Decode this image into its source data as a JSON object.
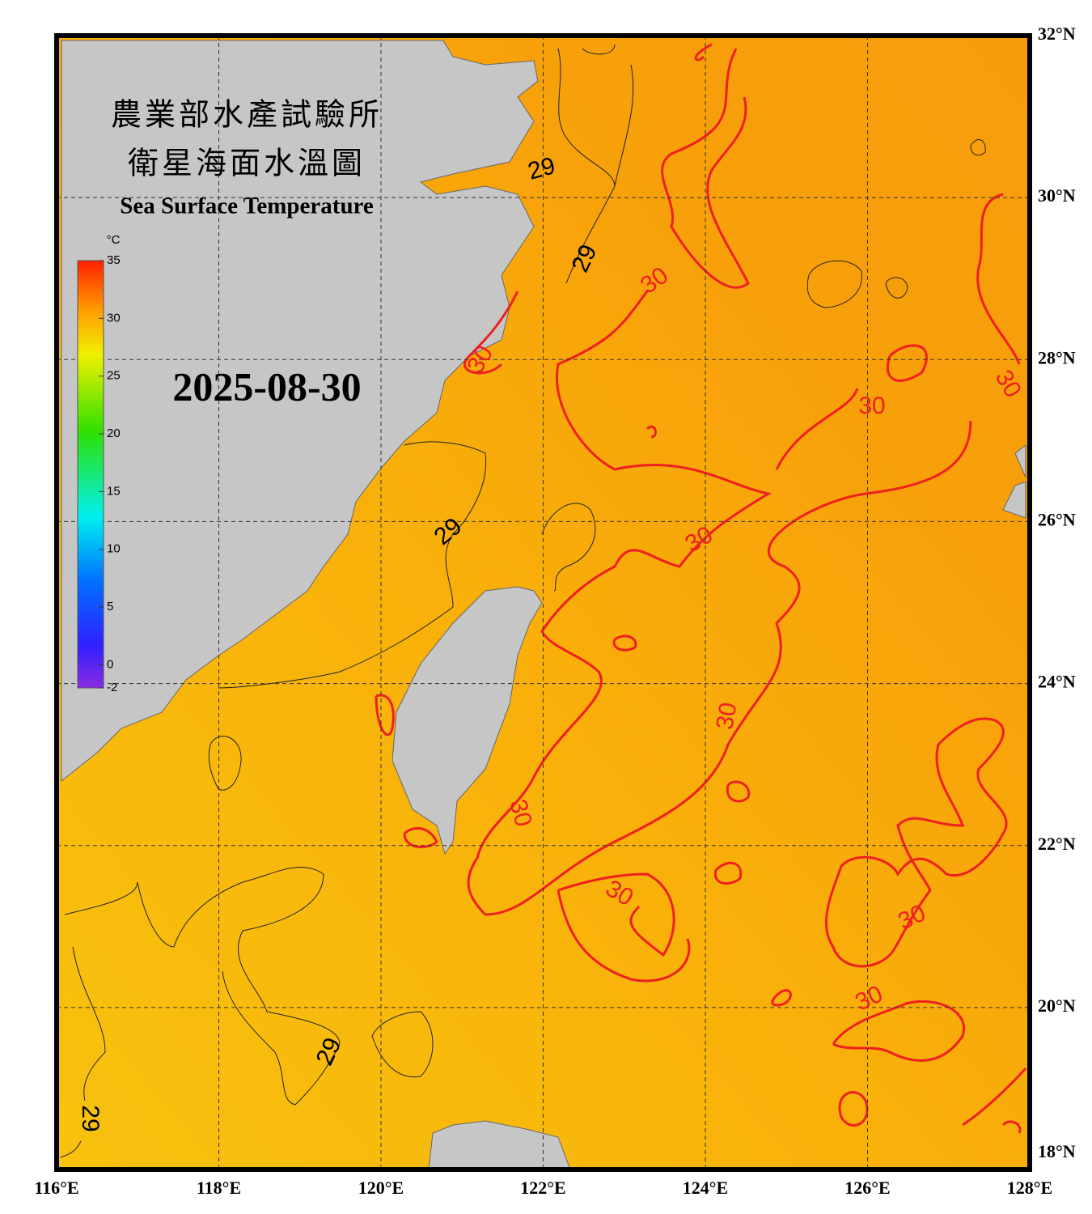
{
  "title_zh": [
    "農業部水產試驗所",
    "衛星海面水溫圖"
  ],
  "title_en": "Sea Surface Temperature",
  "date": "2025-08-30",
  "colorbar": {
    "unit": "°C",
    "range": [
      -2,
      35
    ],
    "ticks": [
      35,
      30,
      25,
      20,
      15,
      10,
      5,
      0,
      -2
    ]
  },
  "map": {
    "xlim": [
      116,
      128
    ],
    "ylim": [
      18,
      32
    ],
    "lon_ticks": [
      {
        "value": 116,
        "label": "116°E"
      },
      {
        "value": 118,
        "label": "118°E"
      },
      {
        "value": 120,
        "label": "120°E"
      },
      {
        "value": 122,
        "label": "122°E"
      },
      {
        "value": 124,
        "label": "124°E"
      },
      {
        "value": 126,
        "label": "126°E"
      },
      {
        "value": 128,
        "label": "128°E"
      }
    ],
    "lat_ticks": [
      {
        "value": 18,
        "label": "18°N"
      },
      {
        "value": 20,
        "label": "20°N"
      },
      {
        "value": 22,
        "label": "22°N"
      },
      {
        "value": 24,
        "label": "24°N"
      },
      {
        "value": 26,
        "label": "26°N"
      },
      {
        "value": 28,
        "label": "28°N"
      },
      {
        "value": 30,
        "label": "30°N"
      },
      {
        "value": 32,
        "label": "32°N"
      }
    ],
    "contour_labels": [
      "29",
      "29",
      "29",
      "29",
      "29",
      "30",
      "30",
      "30",
      "30",
      "30",
      "30",
      "30",
      "30",
      "30",
      "30"
    ]
  }
}
